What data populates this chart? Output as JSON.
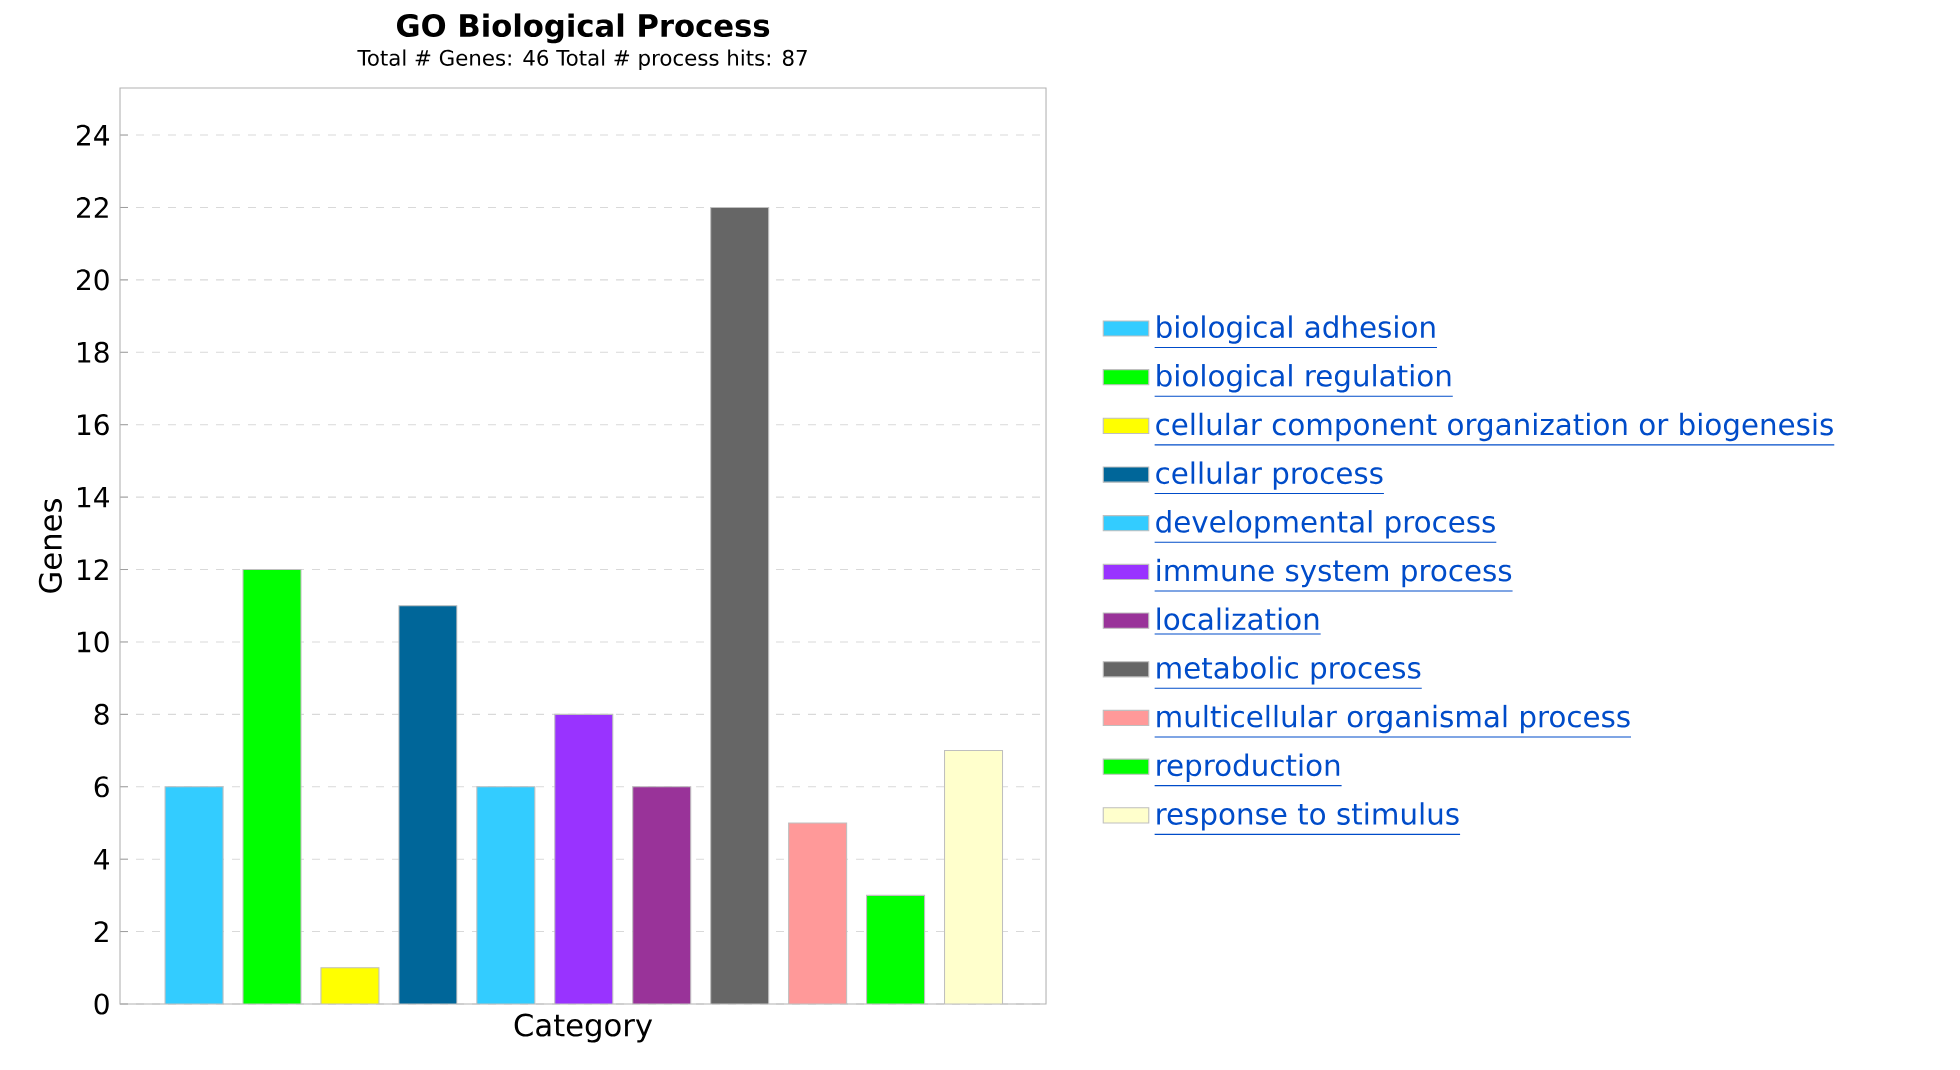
{
  "chart_data": {
    "type": "bar",
    "title": "GO Biological Process",
    "subtitle": "Total # Genes: 46    Total # process hits: 87",
    "xlabel": "Category",
    "ylabel": "Genes",
    "categories": [
      null,
      null,
      null,
      null,
      null,
      null,
      null,
      null,
      null,
      null,
      null
    ],
    "series": [
      {
        "name": "biological adhesion",
        "color": "#33ccff",
        "values": [
          6,
          null,
          null,
          null,
          null,
          null,
          null,
          null,
          null,
          null,
          null
        ]
      },
      {
        "name": "biological regulation",
        "color": "#00ff00",
        "values": [
          null,
          12,
          null,
          null,
          null,
          null,
          null,
          null,
          null,
          null,
          null
        ]
      },
      {
        "name": "cellular component organization or biogenesis",
        "color": "#ffff00",
        "values": [
          null,
          null,
          1,
          null,
          null,
          null,
          null,
          null,
          null,
          null,
          null
        ]
      },
      {
        "name": "cellular process",
        "color": "#006699",
        "values": [
          null,
          null,
          null,
          11,
          null,
          null,
          null,
          null,
          null,
          null,
          null
        ]
      },
      {
        "name": "developmental process",
        "color": "#33ccff",
        "values": [
          null,
          null,
          null,
          null,
          6,
          null,
          null,
          null,
          null,
          null,
          null
        ]
      },
      {
        "name": "immune system process",
        "color": "#9933ff",
        "values": [
          null,
          null,
          null,
          null,
          null,
          8,
          null,
          null,
          null,
          null,
          null
        ]
      },
      {
        "name": "localization",
        "color": "#993399",
        "values": [
          null,
          null,
          null,
          null,
          null,
          null,
          6,
          null,
          null,
          null,
          null
        ]
      },
      {
        "name": "metabolic process",
        "color": "#666666",
        "values": [
          null,
          null,
          null,
          null,
          null,
          null,
          null,
          22,
          null,
          null,
          null
        ]
      },
      {
        "name": "multicellular organismal process",
        "color": "#ff9999",
        "values": [
          null,
          null,
          null,
          null,
          null,
          null,
          null,
          null,
          5,
          null,
          null
        ]
      },
      {
        "name": "reproduction",
        "color": "#00ff00",
        "values": [
          null,
          null,
          null,
          null,
          null,
          null,
          null,
          null,
          null,
          3,
          null
        ]
      },
      {
        "name": "response to stimulus",
        "color": "#ffffcc",
        "values": [
          null,
          null,
          null,
          null,
          null,
          null,
          null,
          null,
          null,
          null,
          7
        ]
      }
    ],
    "ylim": [
      0,
      25.3
    ],
    "yticks": [
      0,
      2,
      4,
      6,
      8,
      10,
      12,
      14,
      16,
      18,
      20,
      22,
      24
    ],
    "grid": "y",
    "legend": "right",
    "tick_labels": "y"
  }
}
